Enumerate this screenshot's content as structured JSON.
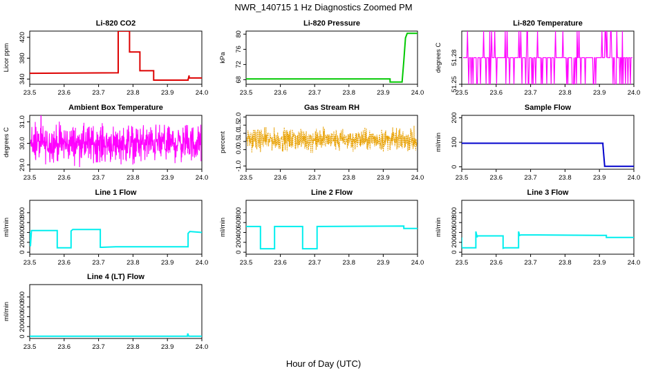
{
  "title": "NWR_140715  1 Hz Diagnostics Zoomed PM",
  "xlabel": "Hour of Day (UTC)",
  "colors": {
    "co2": "#dd0000",
    "pressure": "#00c800",
    "licor_temp": "#ff00ff",
    "box_temp": "#ff00ff",
    "rh": "#e8a000",
    "sample_flow": "#0000cc",
    "line_flow": "#00eeee"
  },
  "chart_data": [
    {
      "type": "line",
      "title": "Li-820 CO2",
      "xlabel": "",
      "ylabel": "Licor ppm",
      "xlim": [
        23.5,
        24.0
      ],
      "ylim": [
        330,
        432
      ],
      "xticks": [
        "23.5",
        "23.6",
        "23.7",
        "23.8",
        "23.9",
        "24.0"
      ],
      "yticks": [
        "340",
        "380",
        "420"
      ],
      "color_key": "co2",
      "series": [
        {
          "x": [
            23.5,
            23.757,
            23.757,
            23.79,
            23.79,
            23.82,
            23.82,
            23.86,
            23.86,
            23.96,
            23.96,
            23.963,
            23.963,
            24.0
          ],
          "y": [
            351,
            352,
            432,
            432,
            392,
            392,
            356,
            356,
            338,
            338,
            339,
            347,
            342,
            342
          ]
        }
      ]
    },
    {
      "type": "line",
      "title": "Li-820 Pressure",
      "xlabel": "",
      "ylabel": "kPa",
      "xlim": [
        23.5,
        24.0
      ],
      "ylim": [
        66.8,
        80.8
      ],
      "xticks": [
        "23.5",
        "23.6",
        "23.7",
        "23.8",
        "23.9",
        "24.0"
      ],
      "yticks": [
        "68",
        "72",
        "76",
        "80"
      ],
      "color_key": "pressure",
      "series": [
        {
          "x": [
            23.5,
            23.92,
            23.92,
            23.955,
            23.96,
            23.965,
            23.97,
            24.0
          ],
          "y": [
            68.2,
            68.2,
            67.4,
            67.4,
            73,
            79,
            80.2,
            80.2
          ]
        }
      ]
    },
    {
      "type": "line",
      "title": "Li-820 Temperature",
      "xlabel": "",
      "ylabel": "degrees C",
      "xlim": [
        23.5,
        24.0
      ],
      "ylim": [
        51.25,
        51.31
      ],
      "xticks": [
        "23.5",
        "23.6",
        "23.7",
        "23.8",
        "23.9",
        "24.0"
      ],
      "yticks": [
        "51.25",
        "51.28"
      ],
      "color_key": "licor_temp",
      "levels": [
        51.25,
        51.28,
        51.31
      ]
    },
    {
      "type": "line",
      "title": "Ambient Box Temperature",
      "xlabel": "",
      "ylabel": "degrees C",
      "xlim": [
        23.5,
        24.0
      ],
      "ylim": [
        28.8,
        31.3
      ],
      "xticks": [
        "23.5",
        "23.6",
        "23.7",
        "23.8",
        "23.9",
        "24.0"
      ],
      "yticks": [
        "29.0",
        "30.0",
        "31.0"
      ],
      "color_key": "box_temp",
      "center": 30.0,
      "spread": 0.9
    },
    {
      "type": "line",
      "title": "Gas Stream RH",
      "xlabel": "",
      "ylabel": "percent",
      "xlim": [
        23.5,
        24.0
      ],
      "ylim": [
        -1.2,
        2.1
      ],
      "xticks": [
        "23.5",
        "23.6",
        "23.7",
        "23.8",
        "23.9",
        "24.0"
      ],
      "yticks": [
        "-1.0",
        "0.0",
        "0.5",
        "1.0",
        "1.5",
        "2.0"
      ],
      "color_key": "rh",
      "center": 0.6,
      "spread": 0.7
    },
    {
      "type": "line",
      "title": "Sample Flow",
      "xlabel": "",
      "ylabel": "ml/min",
      "xlim": [
        23.5,
        24.0
      ],
      "ylim": [
        -10,
        210
      ],
      "xticks": [
        "23.5",
        "23.6",
        "23.7",
        "23.8",
        "23.9",
        "24.0"
      ],
      "yticks": [
        "0",
        "100",
        "200"
      ],
      "color_key": "sample_flow",
      "series": [
        {
          "x": [
            23.5,
            23.91,
            23.91,
            23.915,
            23.915,
            24.0
          ],
          "y": [
            96,
            96,
            90,
            5,
            2,
            2
          ]
        }
      ]
    },
    {
      "type": "line",
      "title": "Line 1 Flow",
      "xlabel": "",
      "ylabel": "ml/min",
      "xlim": [
        23.5,
        24.0
      ],
      "ylim": [
        -40,
        1050
      ],
      "xticks": [
        "23.5",
        "23.6",
        "23.7",
        "23.8",
        "23.9",
        "24.0"
      ],
      "yticks": [
        "0",
        "200",
        "400",
        "600",
        "800"
      ],
      "color_key": "line_flow",
      "series": [
        {
          "x": [
            23.5,
            23.502,
            23.505,
            23.58,
            23.58,
            23.62,
            23.62,
            23.625,
            23.705,
            23.705,
            23.71,
            23.75,
            23.96,
            23.96,
            23.965,
            24.0
          ],
          "y": [
            420,
            120,
            440,
            440,
            90,
            90,
            430,
            460,
            460,
            100,
            100,
            110,
            110,
            380,
            420,
            400
          ]
        }
      ]
    },
    {
      "type": "line",
      "title": "Line 2 Flow",
      "xlabel": "",
      "ylabel": "ml/min",
      "xlim": [
        23.5,
        24.0
      ],
      "ylim": [
        -40,
        1050
      ],
      "xticks": [
        "23.5",
        "23.6",
        "23.7",
        "23.8",
        "23.9",
        "24.0"
      ],
      "yticks": [
        "0",
        "200",
        "400",
        "600",
        "800"
      ],
      "color_key": "line_flow",
      "series": [
        {
          "x": [
            23.5,
            23.542,
            23.542,
            23.583,
            23.583,
            23.665,
            23.665,
            23.707,
            23.707,
            23.96,
            23.96,
            24.0
          ],
          "y": [
            520,
            520,
            70,
            70,
            520,
            520,
            70,
            70,
            520,
            530,
            480,
            480
          ]
        }
      ]
    },
    {
      "type": "line",
      "title": "Line 3 Flow",
      "xlabel": "",
      "ylabel": "ml/min",
      "xlim": [
        23.5,
        24.0
      ],
      "ylim": [
        -40,
        1050
      ],
      "xticks": [
        "23.5",
        "23.6",
        "23.7",
        "23.8",
        "23.9",
        "24.0"
      ],
      "yticks": [
        "0",
        "200",
        "400",
        "600",
        "800"
      ],
      "color_key": "line_flow",
      "series": [
        {
          "x": [
            23.5,
            23.5,
            23.502,
            23.541,
            23.541,
            23.545,
            23.545,
            23.62,
            23.62,
            23.625,
            23.665,
            23.665,
            23.668,
            23.672,
            23.72,
            23.9,
            23.92,
            23.92,
            24.0
          ],
          "y": [
            300,
            100,
            90,
            90,
            420,
            300,
            330,
            330,
            80,
            90,
            90,
            420,
            340,
            350,
            350,
            340,
            340,
            300,
            300
          ]
        }
      ]
    },
    {
      "type": "line",
      "title": "Line 4 (LT) Flow",
      "xlabel": "",
      "ylabel": "ml/min",
      "xlim": [
        23.5,
        24.0
      ],
      "ylim": [
        -40,
        1050
      ],
      "xticks": [
        "23.5",
        "23.6",
        "23.7",
        "23.8",
        "23.9",
        "24.0"
      ],
      "yticks": [
        "0",
        "200",
        "400",
        "600",
        "800"
      ],
      "color_key": "line_flow",
      "series": [
        {
          "x": [
            23.5,
            23.958,
            23.959,
            23.962,
            24.0
          ],
          "y": [
            5,
            5,
            60,
            5,
            5
          ]
        }
      ]
    }
  ]
}
